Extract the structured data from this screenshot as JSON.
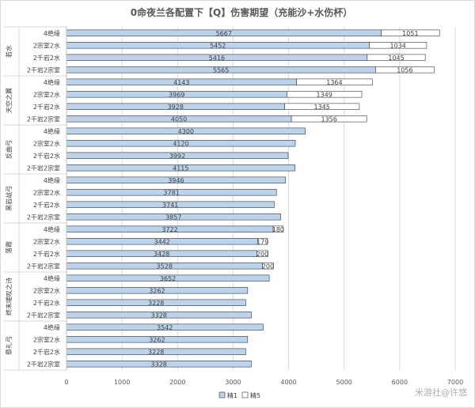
{
  "chart_data": {
    "type": "bar",
    "orientation": "horizontal",
    "stacked": true,
    "title": "0命夜兰各配置下【Q】伤害期望（充能沙+水伤杯）",
    "xlim": [
      0,
      7000
    ],
    "xticks": [
      "0",
      "1000",
      "2000",
      "3000",
      "4000",
      "5000",
      "6000",
      "7000"
    ],
    "grid": true,
    "legend_position": "bottom",
    "groups": [
      {
        "name": "若水",
        "categories": [
          "4绝缘",
          "2宗室2水",
          "2千岩2水",
          "2千岩2宗室"
        ]
      },
      {
        "name": "天空之翼",
        "categories": [
          "4绝缘",
          "2宗室2水",
          "2千岩2水",
          "2千岩2宗室"
        ]
      },
      {
        "name": "反曲弓",
        "categories": [
          "4绝缘",
          "2宗室2水",
          "2千岩2水",
          "2千岩2宗室"
        ]
      },
      {
        "name": "黑岩战弓",
        "categories": [
          "4绝缘",
          "2宗室2水",
          "2千岩2水",
          "2千岩2宗室"
        ]
      },
      {
        "name": "落霞",
        "categories": [
          "4绝缘",
          "2宗室2水",
          "2千岩2水",
          "2千岩2宗室"
        ]
      },
      {
        "name": "终末嗟叹之诗",
        "categories": [
          "4绝缘",
          "2宗室2水",
          "2千岩2水",
          "2千岩2宗室"
        ]
      },
      {
        "name": "祭礼弓",
        "categories": [
          "4绝缘",
          "2宗室2水",
          "2千岩2水",
          "2千岩2宗室"
        ]
      }
    ],
    "series": [
      {
        "name": "精1",
        "color": "#bcd3ea",
        "values": [
          5667,
          5452,
          5416,
          5565,
          4143,
          3969,
          3928,
          4050,
          4300,
          4120,
          3992,
          4115,
          3946,
          3781,
          3741,
          3857,
          3722,
          3442,
          3428,
          3528,
          3652,
          3262,
          3228,
          3328,
          3542,
          3262,
          3228,
          3328
        ],
        "labels": [
          "5667",
          "5452",
          "5416",
          "5565",
          "4143",
          "3969",
          "3928",
          "4050",
          "4300",
          "4120",
          "3992",
          "4115",
          "3946",
          "3781",
          "3741",
          "3857",
          "3722",
          "3442",
          "3428",
          "3528",
          "3652",
          "3262",
          "3228",
          "3328",
          "3542",
          "3262",
          "3228",
          "3328"
        ]
      },
      {
        "name": "精5",
        "color": "#ffffff",
        "values": [
          1051,
          1034,
          1045,
          1056,
          1364,
          1349,
          1345,
          1356,
          0,
          0,
          0,
          0,
          0,
          0,
          0,
          0,
          180,
          179,
          200,
          200,
          0,
          0,
          0,
          0,
          0,
          0,
          0,
          0
        ],
        "labels": [
          "1051",
          "1034",
          "1045",
          "1056",
          "1364",
          "1349",
          "1345",
          "1356",
          "",
          "",
          "",
          "",
          "",
          "",
          "",
          "",
          "180",
          "179",
          "200",
          "200",
          "",
          "",
          "",
          "",
          "",
          "",
          "",
          ""
        ]
      }
    ]
  },
  "watermark": "米游社@许悠"
}
